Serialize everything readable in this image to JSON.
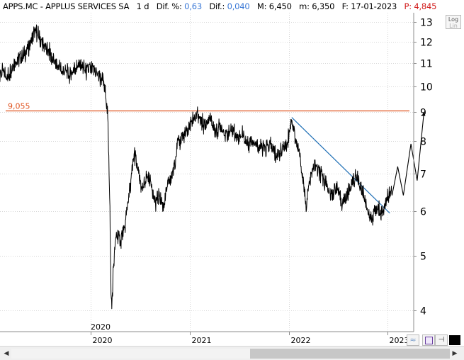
{
  "header": {
    "symbol": "APPS.MC - APPLUS SERVICES SA",
    "period": "1 d",
    "dif_pct_label": "Dif. %:",
    "dif_pct_value": "0,63",
    "dif_label": "Dif.:",
    "dif_value": "0,040",
    "max_label": "M:",
    "max_value": "6,450",
    "min_label": "m:",
    "min_value": "6,350",
    "date_label": "F:",
    "date_value": "17-01-2023",
    "p_label": "P:",
    "p_value": "4,845"
  },
  "log_button": {
    "line1": "Log",
    "line2": "Lin"
  },
  "corner_year_label": "2020",
  "toolbar_icons": [
    "wave-icon",
    "save-icon",
    "pin-icon",
    "color-swatch-icon"
  ],
  "colors": {
    "price": "#000000",
    "resistance": "#e0531f",
    "trendline": "#1f6fb5",
    "grid": "#d7d7d7",
    "axis": "#8c8c8c",
    "header_blue": "#3a78d6",
    "header_red": "#d11a1a"
  },
  "chart_data": {
    "type": "line",
    "scale": "log",
    "ylim": [
      3.8,
      13.8
    ],
    "yticks": [
      4,
      5,
      6,
      7,
      8,
      9,
      10,
      11,
      12,
      13
    ],
    "xticks": [
      "2020",
      "2021",
      "2022",
      "2023"
    ],
    "grid": true,
    "resistance": {
      "label": "9,055",
      "value": 9.055
    },
    "trendline": {
      "start": [
        "2022-01-12",
        8.8
      ],
      "end": [
        "2023-01-09",
        5.95
      ]
    },
    "series": [
      {
        "values": [
          [
            "2019-01-02",
            9.9
          ],
          [
            "2019-01-20",
            10.4
          ],
          [
            "2019-02-10",
            10.6
          ],
          [
            "2019-03-01",
            10.4
          ],
          [
            "2019-03-20",
            10.9
          ],
          [
            "2019-04-10",
            11.2
          ],
          [
            "2019-05-01",
            11.4
          ],
          [
            "2019-05-20",
            11.8
          ],
          [
            "2019-06-05",
            12.5
          ],
          [
            "2019-06-25",
            12.3
          ],
          [
            "2019-07-10",
            11.8
          ],
          [
            "2019-07-30",
            11.6
          ],
          [
            "2019-08-15",
            11.1
          ],
          [
            "2019-09-05",
            10.8
          ],
          [
            "2019-09-25",
            10.6
          ],
          [
            "2019-10-15",
            10.5
          ],
          [
            "2019-11-05",
            10.8
          ],
          [
            "2019-11-25",
            10.9
          ],
          [
            "2019-12-15",
            10.6
          ],
          [
            "2020-01-05",
            10.8
          ],
          [
            "2020-01-25",
            10.5
          ],
          [
            "2020-02-15",
            10.2
          ],
          [
            "2020-02-25",
            9.8
          ],
          [
            "2020-03-03",
            8.9
          ],
          [
            "2020-03-08",
            7.6
          ],
          [
            "2020-03-12",
            6.0
          ],
          [
            "2020-03-16",
            4.3
          ],
          [
            "2020-03-19",
            4.05
          ],
          [
            "2020-03-25",
            4.8
          ],
          [
            "2020-04-05",
            5.5
          ],
          [
            "2020-04-20",
            5.3
          ],
          [
            "2020-05-05",
            5.6
          ],
          [
            "2020-05-25",
            6.6
          ],
          [
            "2020-06-10",
            7.6
          ],
          [
            "2020-06-25",
            7.0
          ],
          [
            "2020-07-10",
            6.5
          ],
          [
            "2020-07-25",
            6.9
          ],
          [
            "2020-08-10",
            6.8
          ],
          [
            "2020-08-25",
            6.2
          ],
          [
            "2020-09-10",
            6.4
          ],
          [
            "2020-09-25",
            6.1
          ],
          [
            "2020-10-10",
            6.6
          ],
          [
            "2020-10-30",
            7.0
          ],
          [
            "2020-11-15",
            7.8
          ],
          [
            "2020-11-30",
            8.1
          ],
          [
            "2020-12-15",
            8.2
          ],
          [
            "2021-01-05",
            8.6
          ],
          [
            "2021-01-25",
            8.9
          ],
          [
            "2021-02-10",
            8.7
          ],
          [
            "2021-02-25",
            8.5
          ],
          [
            "2021-03-15",
            8.8
          ],
          [
            "2021-04-05",
            8.3
          ],
          [
            "2021-04-25",
            8.5
          ],
          [
            "2021-05-15",
            8.2
          ],
          [
            "2021-06-05",
            8.4
          ],
          [
            "2021-06-25",
            8.1
          ],
          [
            "2021-07-15",
            8.2
          ],
          [
            "2021-08-05",
            7.9
          ],
          [
            "2021-08-25",
            8.0
          ],
          [
            "2021-09-15",
            7.8
          ],
          [
            "2021-10-05",
            7.7
          ],
          [
            "2021-10-25",
            7.9
          ],
          [
            "2021-11-15",
            7.5
          ],
          [
            "2021-12-05",
            7.7
          ],
          [
            "2021-12-25",
            7.9
          ],
          [
            "2022-01-12",
            8.75
          ],
          [
            "2022-01-25",
            8.1
          ],
          [
            "2022-02-10",
            7.5
          ],
          [
            "2022-02-25",
            6.7
          ],
          [
            "2022-03-05",
            6.1
          ],
          [
            "2022-03-15",
            6.6
          ],
          [
            "2022-04-05",
            7.3
          ],
          [
            "2022-04-25",
            7.0
          ],
          [
            "2022-05-15",
            6.8
          ],
          [
            "2022-06-05",
            6.4
          ],
          [
            "2022-06-25",
            6.6
          ],
          [
            "2022-07-15",
            6.2
          ],
          [
            "2022-08-05",
            6.4
          ],
          [
            "2022-08-25",
            6.8
          ],
          [
            "2022-09-10",
            6.9
          ],
          [
            "2022-09-25",
            6.6
          ],
          [
            "2022-10-10",
            6.3
          ],
          [
            "2022-10-25",
            5.8
          ],
          [
            "2022-11-10",
            5.9
          ],
          [
            "2022-11-25",
            6.1
          ],
          [
            "2022-12-10",
            5.95
          ],
          [
            "2022-12-25",
            6.2
          ],
          [
            "2023-01-10",
            6.5
          ],
          [
            "2023-01-17",
            6.4
          ]
        ]
      },
      {
        "values": [
          [
            "2023-01-17",
            6.4
          ],
          [
            "2023-02-07",
            7.2
          ],
          [
            "2023-02-28",
            6.4
          ],
          [
            "2023-03-28",
            7.9
          ],
          [
            "2023-04-20",
            6.8
          ],
          [
            "2023-05-15",
            9.0
          ]
        ]
      }
    ]
  }
}
